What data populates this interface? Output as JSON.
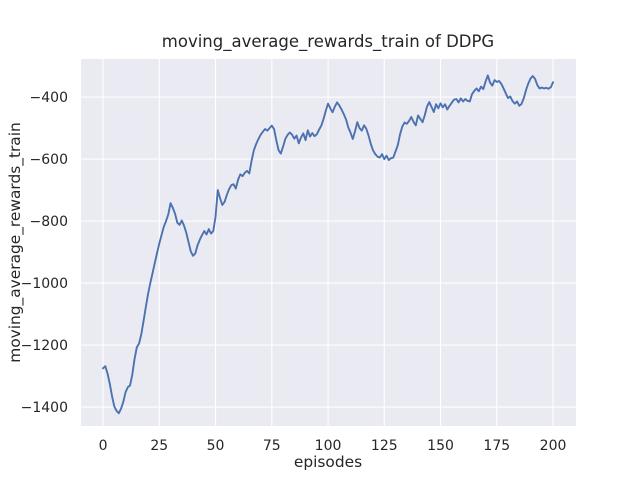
{
  "style": {
    "line_color": "#4c72b0",
    "plot_bg": "#eaeaf2",
    "grid_color": "#ffffff",
    "text_color": "#262626",
    "figure_bg": "#ffffff"
  },
  "chart_data": {
    "type": "line",
    "title": "moving_average_rewards_train of DDPG",
    "xlabel": "episodes",
    "ylabel": "moving_average_rewards_train",
    "x_ticks": [
      0,
      25,
      50,
      75,
      100,
      125,
      150,
      175,
      200
    ],
    "y_ticks": [
      -400,
      -600,
      -800,
      -1000,
      -1200,
      -1400
    ],
    "xlim": [
      -9.8,
      210.2
    ],
    "ylim": [
      -1461,
      -277
    ],
    "grid": true,
    "legend_position": "none",
    "series": [
      {
        "name": "moving_average_rewards_train",
        "x_start": 0,
        "x_step": 1,
        "values": [
          -1275,
          -1268,
          -1292,
          -1325,
          -1365,
          -1398,
          -1412,
          -1420,
          -1405,
          -1383,
          -1352,
          -1336,
          -1330,
          -1295,
          -1245,
          -1207,
          -1195,
          -1165,
          -1122,
          -1078,
          -1035,
          -1000,
          -968,
          -935,
          -903,
          -872,
          -845,
          -818,
          -800,
          -778,
          -742,
          -757,
          -776,
          -805,
          -812,
          -798,
          -815,
          -838,
          -868,
          -898,
          -912,
          -904,
          -878,
          -860,
          -845,
          -832,
          -843,
          -826,
          -840,
          -832,
          -785,
          -700,
          -726,
          -748,
          -738,
          -716,
          -697,
          -684,
          -681,
          -695,
          -667,
          -649,
          -655,
          -644,
          -638,
          -646,
          -606,
          -572,
          -552,
          -536,
          -522,
          -512,
          -503,
          -508,
          -500,
          -492,
          -503,
          -539,
          -571,
          -582,
          -560,
          -535,
          -522,
          -514,
          -521,
          -534,
          -524,
          -549,
          -530,
          -517,
          -539,
          -507,
          -527,
          -516,
          -526,
          -520,
          -505,
          -492,
          -470,
          -444,
          -421,
          -436,
          -449,
          -431,
          -417,
          -427,
          -440,
          -455,
          -472,
          -498,
          -515,
          -535,
          -510,
          -481,
          -500,
          -508,
          -491,
          -502,
          -524,
          -551,
          -572,
          -584,
          -592,
          -595,
          -584,
          -600,
          -589,
          -603,
          -597,
          -595,
          -575,
          -555,
          -520,
          -495,
          -482,
          -486,
          -477,
          -464,
          -480,
          -491,
          -459,
          -470,
          -481,
          -458,
          -430,
          -416,
          -432,
          -448,
          -423,
          -436,
          -420,
          -433,
          -423,
          -440,
          -428,
          -418,
          -408,
          -406,
          -417,
          -404,
          -414,
          -406,
          -412,
          -414,
          -390,
          -380,
          -372,
          -381,
          -366,
          -374,
          -350,
          -330,
          -353,
          -363,
          -345,
          -351,
          -348,
          -357,
          -372,
          -388,
          -403,
          -398,
          -413,
          -421,
          -414,
          -428,
          -422,
          -403,
          -377,
          -356,
          -340,
          -332,
          -341,
          -361,
          -372,
          -369,
          -372,
          -370,
          -373,
          -368,
          -352
        ]
      }
    ]
  }
}
